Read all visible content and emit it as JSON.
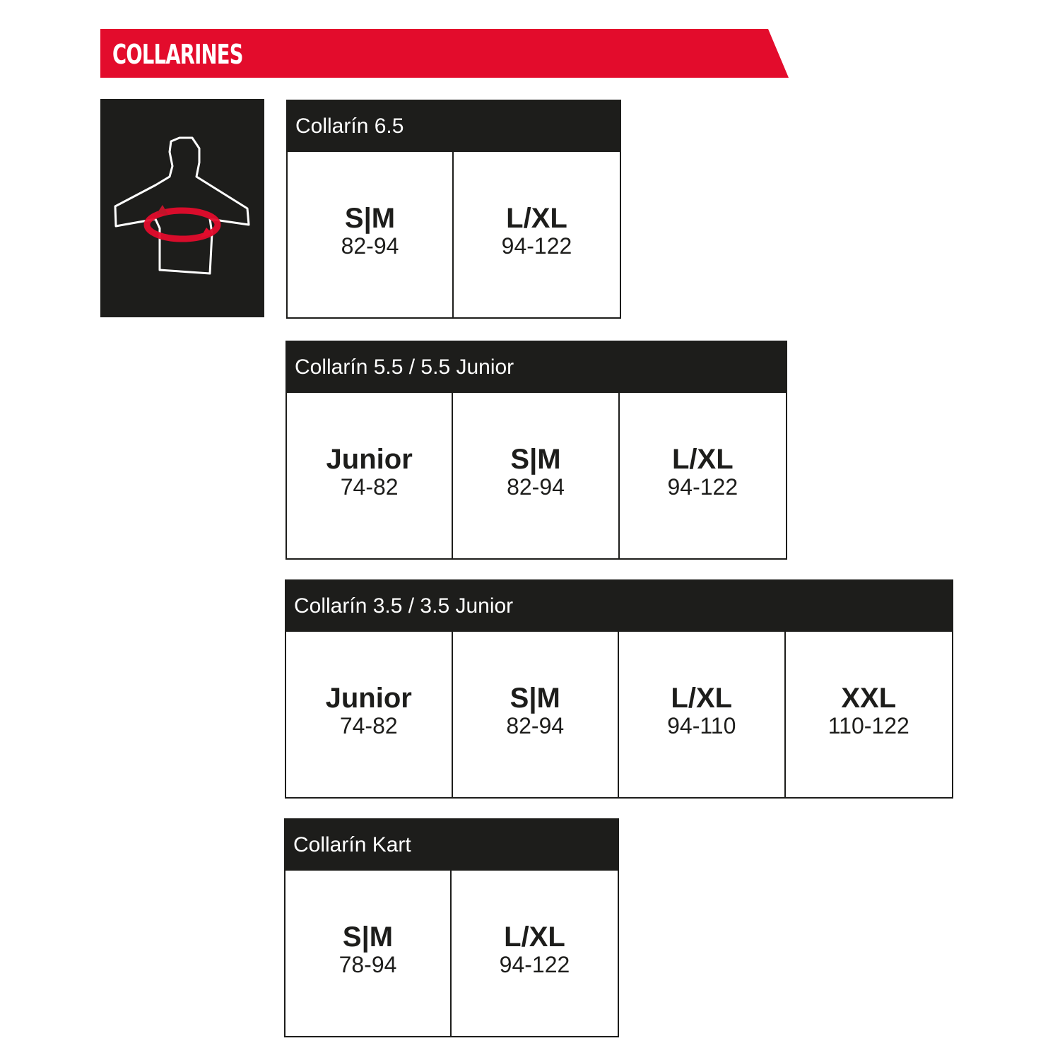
{
  "banner": {
    "title": "COLLARINES",
    "color": "#e30c2c"
  },
  "icon": {
    "name": "torso-chest-measure-icon",
    "unit": "cm"
  },
  "tables": [
    {
      "title": "Collarín 6.5",
      "sizes": [
        {
          "size": "S|M",
          "range": "82-94"
        },
        {
          "size": "L/XL",
          "range": "94-122"
        }
      ]
    },
    {
      "title": "Collarín 5.5 / 5.5 Junior",
      "sizes": [
        {
          "size": "Junior",
          "range": "74-82"
        },
        {
          "size": "S|M",
          "range": "82-94"
        },
        {
          "size": "L/XL",
          "range": "94-122"
        }
      ]
    },
    {
      "title": "Collarín 3.5 / 3.5 Junior",
      "sizes": [
        {
          "size": "Junior",
          "range": "74-82"
        },
        {
          "size": "S|M",
          "range": "82-94"
        },
        {
          "size": "L/XL",
          "range": "94-110"
        },
        {
          "size": "XXL",
          "range": "110-122"
        }
      ]
    },
    {
      "title": "Collarín Kart",
      "sizes": [
        {
          "size": "S|M",
          "range": "78-94"
        },
        {
          "size": "L/XL",
          "range": "94-122"
        }
      ]
    }
  ]
}
